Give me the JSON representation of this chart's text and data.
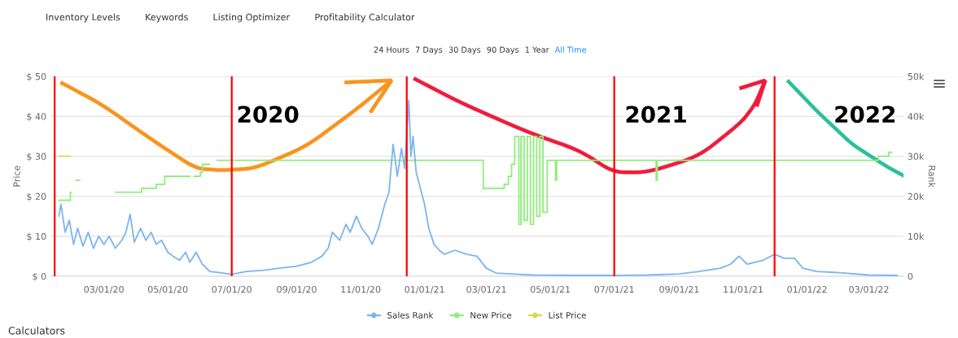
{
  "chart_data": {
    "type": "line",
    "ylabel": "Price",
    "y2label": "Rank",
    "xlim": [
      "2020-01-10",
      "2022-04-03"
    ],
    "xticks": [
      {
        "value": "2020-03-01",
        "label": "03/01/20"
      },
      {
        "value": "2020-05-01",
        "label": "05/01/20"
      },
      {
        "value": "2020-07-01",
        "label": "07/01/20"
      },
      {
        "value": "2020-09-01",
        "label": "09/01/20"
      },
      {
        "value": "2020-11-01",
        "label": "11/01/20"
      },
      {
        "value": "2021-01-01",
        "label": "01/01/21"
      },
      {
        "value": "2021-03-01",
        "label": "03/01/21"
      },
      {
        "value": "2021-05-01",
        "label": "05/01/21"
      },
      {
        "value": "2021-07-01",
        "label": "07/01/21"
      },
      {
        "value": "2021-09-01",
        "label": "09/01/21"
      },
      {
        "value": "2021-11-01",
        "label": "11/01/21"
      },
      {
        "value": "2022-01-01",
        "label": "01/01/22"
      },
      {
        "value": "2022-03-01",
        "label": "03/01/22"
      }
    ],
    "ylim": [
      0,
      50
    ],
    "yticks": [
      {
        "value": 0,
        "label": "$ 0"
      },
      {
        "value": 10,
        "label": "$ 10"
      },
      {
        "value": 20,
        "label": "$ 20"
      },
      {
        "value": 30,
        "label": "$ 30"
      },
      {
        "value": 40,
        "label": "$ 40"
      },
      {
        "value": 50,
        "label": "$ 50"
      }
    ],
    "y2lim": [
      0,
      50000
    ],
    "y2ticks": [
      0,
      {
        "value": 10000,
        "label": "10k"
      },
      {
        "value": 20000,
        "label": "20k"
      },
      {
        "value": 30000,
        "label": "30k"
      },
      {
        "value": 40000,
        "label": "40k"
      },
      {
        "value": 50000,
        "label": "50k"
      }
    ],
    "grid": "y",
    "legend": "bottom",
    "marker": "none",
    "series": [
      {
        "name": "Sales Rank",
        "color": "#7cb5ec",
        "axis": "y2",
        "x": [
          "2020-01-18",
          "2020-01-20",
          "2020-01-24",
          "2020-01-28",
          "2020-02-01",
          "2020-02-05",
          "2020-02-10",
          "2020-02-15",
          "2020-02-20",
          "2020-02-25",
          "2020-03-01",
          "2020-03-06",
          "2020-03-12",
          "2020-03-18",
          "2020-03-22",
          "2020-03-26",
          "2020-03-30",
          "2020-04-05",
          "2020-04-10",
          "2020-04-15",
          "2020-04-20",
          "2020-04-25",
          "2020-05-01",
          "2020-05-06",
          "2020-05-12",
          "2020-05-18",
          "2020-05-22",
          "2020-05-28",
          "2020-06-03",
          "2020-06-10",
          "2020-06-20",
          "2020-07-01",
          "2020-07-15",
          "2020-08-01",
          "2020-08-15",
          "2020-09-01",
          "2020-09-15",
          "2020-09-25",
          "2020-10-01",
          "2020-10-05",
          "2020-10-12",
          "2020-10-18",
          "2020-10-22",
          "2020-10-28",
          "2020-11-02",
          "2020-11-08",
          "2020-11-12",
          "2020-11-18",
          "2020-11-24",
          "2020-11-28",
          "2020-12-02",
          "2020-12-06",
          "2020-12-10",
          "2020-12-13",
          "2020-12-17",
          "2020-12-19",
          "2020-12-21",
          "2020-12-24",
          "2020-12-28",
          "2021-01-01",
          "2021-01-05",
          "2021-01-10",
          "2021-01-15",
          "2021-01-20",
          "2021-01-30",
          "2021-02-10",
          "2021-02-20",
          "2021-03-01",
          "2021-03-10",
          "2021-03-25",
          "2021-04-15",
          "2021-06-01",
          "2021-07-01",
          "2021-08-01",
          "2021-09-01",
          "2021-09-20",
          "2021-10-10",
          "2021-10-20",
          "2021-10-28",
          "2021-11-05",
          "2021-11-20",
          "2021-12-01",
          "2021-12-10",
          "2021-12-20",
          "2021-12-28",
          "2022-01-10",
          "2022-02-01",
          "2022-03-01",
          "2022-03-28"
        ],
        "values": [
          15000,
          18000,
          11000,
          14000,
          8000,
          12000,
          7500,
          11000,
          7000,
          10000,
          8000,
          10000,
          7000,
          9000,
          11000,
          15500,
          8500,
          12000,
          9000,
          11000,
          8000,
          9000,
          6000,
          5000,
          4000,
          6000,
          3500,
          6000,
          3000,
          1200,
          900,
          500,
          1200,
          1500,
          2000,
          2500,
          3500,
          5000,
          7000,
          11000,
          9000,
          13000,
          11000,
          15000,
          12000,
          10000,
          8000,
          12000,
          18000,
          21000,
          33000,
          25000,
          32000,
          27000,
          44000,
          30000,
          35000,
          26000,
          22000,
          18000,
          12000,
          8000,
          6500,
          5500,
          6500,
          5500,
          5000,
          2000,
          800,
          600,
          300,
          200,
          200,
          300,
          600,
          1200,
          2000,
          3000,
          5000,
          3000,
          4000,
          5500,
          4500,
          4500,
          2000,
          1200,
          900,
          300,
          200
        ]
      },
      {
        "name": "New Price",
        "color": "#90ed7d",
        "type": "step",
        "x": [
          "2020-01-18",
          "2020-01-29",
          "2020-01-30",
          "2020-02-03",
          "2020-02-07",
          "2020-03-12",
          "2020-04-06",
          "2020-04-20",
          "2020-04-28",
          "2020-05-22",
          "2020-05-26",
          "2020-06-01",
          "2020-06-03",
          "2020-06-10",
          "2020-06-17",
          "2021-02-26",
          "2021-03-18",
          "2021-03-22",
          "2021-03-25",
          "2021-03-28",
          "2021-04-01",
          "2021-04-03",
          "2021-04-06",
          "2021-04-09",
          "2021-04-12",
          "2021-04-15",
          "2021-04-18",
          "2021-04-21",
          "2021-04-24",
          "2021-04-28",
          "2021-05-06",
          "2021-05-07",
          "2021-08-10",
          "2021-08-11",
          "2022-03-10",
          "2022-03-20",
          "2022-03-23"
        ],
        "values": [
          19,
          21,
          null,
          24,
          null,
          21,
          22,
          23,
          25,
          null,
          25,
          26,
          28,
          null,
          29,
          22,
          23,
          25,
          28,
          35,
          13,
          35,
          14,
          35,
          13,
          35,
          15,
          35,
          16,
          29,
          24,
          29,
          24,
          29,
          30,
          31,
          31
        ]
      },
      {
        "name": "List Price",
        "color": "#e4d354",
        "x": [
          "2020-01-18",
          "2020-01-29"
        ],
        "values": [
          30,
          30
        ]
      }
    ],
    "ref_lines": [
      {
        "axis": "x",
        "value": "2020-01-14",
        "color": "#ff0000"
      },
      {
        "axis": "x",
        "value": "2020-07-01",
        "color": "#ff0000"
      },
      {
        "axis": "x",
        "value": "2020-12-15",
        "color": "#ff0000"
      },
      {
        "axis": "x",
        "value": "2021-07-01",
        "color": "#ff0000"
      },
      {
        "axis": "x",
        "value": "2021-12-01",
        "color": "#ff0000"
      }
    ],
    "annotations": [
      "2020",
      "2021",
      "2022",
      "Inventory Levels",
      "Keywords",
      "Listing Optimizer",
      "Profitability Calculator",
      "24 Hours",
      "7 Days",
      "30 Days",
      "90 Days",
      "1 Year",
      "All Time",
      "Calculators"
    ]
  }
}
